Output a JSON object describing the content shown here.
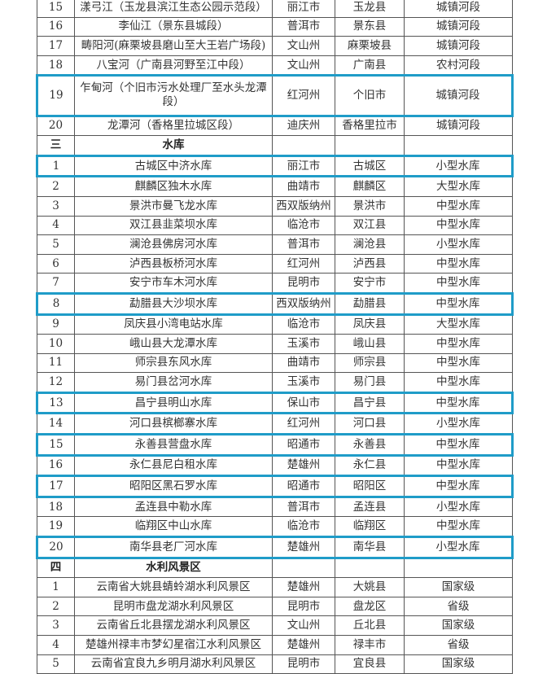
{
  "highlight_color": "#1f9cc8",
  "rows": [
    {
      "no": "15",
      "name": "漾弓江（玉龙县滨江生态公园示范段）",
      "city": "丽江市",
      "county": "玉龙县",
      "type": "城镇河段"
    },
    {
      "no": "16",
      "name": "李仙江（景东县城段）",
      "city": "普洱市",
      "county": "景东县",
      "type": "城镇河段"
    },
    {
      "no": "17",
      "name": "畴阳河(麻栗坡县磨山至大王岩广场段)",
      "city": "文山州",
      "county": "麻栗坡县",
      "type": "城镇河段"
    },
    {
      "no": "18",
      "name": "八宝河（广南县河野至江中段）",
      "city": "文山州",
      "county": "广南县",
      "type": "农村河段"
    },
    {
      "no": "19",
      "name": "乍甸河（个旧市污水处理厂至水头龙潭段）",
      "city": "红河州",
      "county": "个旧市",
      "type": "城镇河段",
      "highlight": true,
      "double": true
    },
    {
      "no": "20",
      "name": "龙潭河（香格里拉城区段）",
      "city": "迪庆州",
      "county": "香格里拉市",
      "type": "城镇河段"
    },
    {
      "no": "三",
      "name": "水库",
      "city": "",
      "county": "",
      "type": "",
      "section": true
    },
    {
      "no": "1",
      "name": "古城区中济水库",
      "city": "丽江市",
      "county": "古城区",
      "type": "小型水库",
      "highlight": true
    },
    {
      "no": "2",
      "name": "麒麟区独木水库",
      "city": "曲靖市",
      "county": "麒麟区",
      "type": "大型水库"
    },
    {
      "no": "3",
      "name": "景洪市曼飞龙水库",
      "city": "西双版纳州",
      "county": "景洪市",
      "type": "中型水库"
    },
    {
      "no": "4",
      "name": "双江县韭菜坝水库",
      "city": "临沧市",
      "county": "双江县",
      "type": "中型水库"
    },
    {
      "no": "5",
      "name": "澜沧县佛房河水库",
      "city": "普洱市",
      "county": "澜沧县",
      "type": "小型水库"
    },
    {
      "no": "6",
      "name": "泸西县板桥河水库",
      "city": "红河州",
      "county": "泸西县",
      "type": "中型水库"
    },
    {
      "no": "7",
      "name": "安宁市车木河水库",
      "city": "昆明市",
      "county": "安宁市",
      "type": "中型水库"
    },
    {
      "no": "8",
      "name": "勐腊县大沙坝水库",
      "city": "西双版纳州",
      "county": "勐腊县",
      "type": "中型水库",
      "highlight": true
    },
    {
      "no": "9",
      "name": "凤庆县小湾电站水库",
      "city": "临沧市",
      "county": "凤庆县",
      "type": "大型水库"
    },
    {
      "no": "10",
      "name": "峨山县大龙潭水库",
      "city": "玉溪市",
      "county": "峨山县",
      "type": "中型水库"
    },
    {
      "no": "11",
      "name": "师宗县东风水库",
      "city": "曲靖市",
      "county": "师宗县",
      "type": "中型水库"
    },
    {
      "no": "12",
      "name": "易门县岔河水库",
      "city": "玉溪市",
      "county": "易门县",
      "type": "中型水库"
    },
    {
      "no": "13",
      "name": "昌宁县明山水库",
      "city": "保山市",
      "county": "昌宁县",
      "type": "中型水库",
      "highlight": true
    },
    {
      "no": "14",
      "name": "河口县槟榔寨水库",
      "city": "红河州",
      "county": "河口县",
      "type": "小型水库"
    },
    {
      "no": "15",
      "name": "永善县营盘水库",
      "city": "昭通市",
      "county": "永善县",
      "type": "中型水库",
      "highlight": true
    },
    {
      "no": "16",
      "name": "永仁县尼白租水库",
      "city": "楚雄州",
      "county": "永仁县",
      "type": "中型水库"
    },
    {
      "no": "17",
      "name": "昭阳区黑石罗水库",
      "city": "昭通市",
      "county": "昭阳区",
      "type": "中型水库",
      "highlight": true
    },
    {
      "no": "18",
      "name": "孟连县中勒水库",
      "city": "普洱市",
      "county": "孟连县",
      "type": "小型水库"
    },
    {
      "no": "19",
      "name": "临翔区中山水库",
      "city": "临沧市",
      "county": "临翔区",
      "type": "中型水库"
    },
    {
      "no": "20",
      "name": "南华县老厂河水库",
      "city": "楚雄州",
      "county": "南华县",
      "type": "小型水库",
      "highlight": true
    },
    {
      "no": "四",
      "name": "水利风景区",
      "city": "",
      "county": "",
      "type": "",
      "section": true
    },
    {
      "no": "1",
      "name": "云南省大姚县蜻蛉湖水利风景区",
      "city": "楚雄州",
      "county": "大姚县",
      "type": "国家级"
    },
    {
      "no": "2",
      "name": "昆明市盘龙湖水利风景区",
      "city": "昆明市",
      "county": "盘龙区",
      "type": "省级"
    },
    {
      "no": "3",
      "name": "云南省丘北县摆龙湖水利风景区",
      "city": "文山州",
      "county": "丘北县",
      "type": "国家级"
    },
    {
      "no": "4",
      "name": "楚雄州禄丰市梦幻星宿江水利风景区",
      "city": "楚雄州",
      "county": "禄丰市",
      "type": "省级"
    },
    {
      "no": "5",
      "name": "云南省宜良九乡明月湖水利风景区",
      "city": "昆明市",
      "county": "宜良县",
      "type": "国家级"
    }
  ]
}
